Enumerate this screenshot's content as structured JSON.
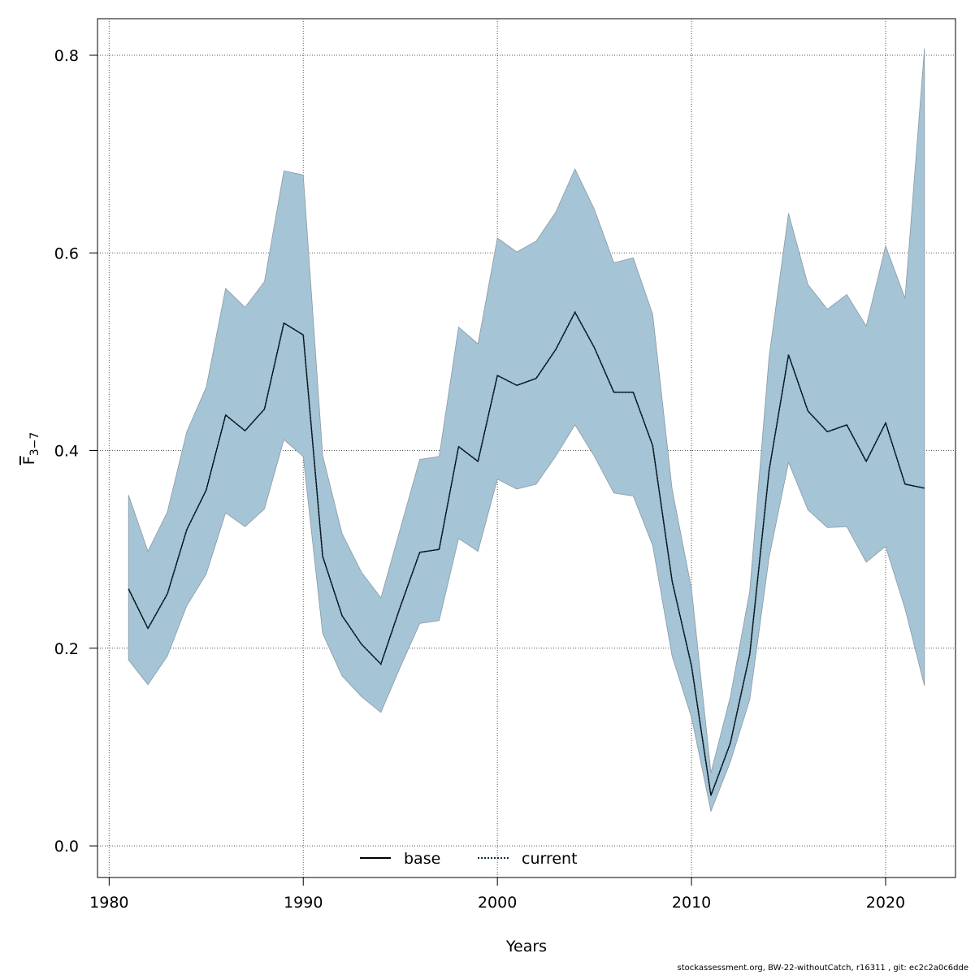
{
  "chart_data": {
    "type": "line",
    "xlabel": "Years",
    "ylabel_main": "F",
    "ylabel_sub": "3−7",
    "xlim": [
      1979.4,
      2023.6
    ],
    "ylim": [
      -0.032,
      0.837
    ],
    "x_ticks": [
      1980,
      1990,
      2000,
      2010,
      2020
    ],
    "y_ticks": [
      0.0,
      0.2,
      0.4,
      0.6,
      0.8
    ],
    "y_tick_labels": [
      "0.0",
      "0.2",
      "0.4",
      "0.6",
      "0.8"
    ],
    "grid": true,
    "legend_position": "bottom-center",
    "band_color": "#a5c4d5",
    "band_edge_color": "#8a9aa5",
    "line_color": "#0d2a3a",
    "years": [
      1981,
      1982,
      1983,
      1984,
      1985,
      1986,
      1987,
      1988,
      1989,
      1990,
      1991,
      1992,
      1993,
      1994,
      1995,
      1996,
      1997,
      1998,
      1999,
      2000,
      2001,
      2002,
      2003,
      2004,
      2005,
      2006,
      2007,
      2008,
      2009,
      2010,
      2011,
      2012,
      2013,
      2014,
      2015,
      2016,
      2017,
      2018,
      2019,
      2020,
      2021,
      2022
    ],
    "series": [
      {
        "name": "base",
        "style": "solid",
        "values": [
          0.26,
          0.22,
          0.255,
          0.32,
          0.36,
          0.436,
          0.42,
          0.442,
          0.529,
          0.517,
          0.293,
          0.233,
          0.204,
          0.184,
          0.242,
          0.297,
          0.3,
          0.404,
          0.389,
          0.476,
          0.466,
          0.473,
          0.502,
          0.54,
          0.504,
          0.459,
          0.459,
          0.405,
          0.268,
          0.182,
          0.051,
          0.104,
          0.194,
          0.38,
          0.497,
          0.44,
          0.419,
          0.426,
          0.389,
          0.428,
          0.366,
          0.362
        ]
      },
      {
        "name": "current",
        "style": "dotted",
        "values": [
          0.26,
          0.22,
          0.255,
          0.32,
          0.36,
          0.436,
          0.42,
          0.442,
          0.529,
          0.517,
          0.293,
          0.233,
          0.204,
          0.184,
          0.242,
          0.297,
          0.3,
          0.404,
          0.389,
          0.476,
          0.466,
          0.473,
          0.502,
          0.54,
          0.504,
          0.459,
          0.459,
          0.405,
          0.268,
          0.182,
          0.051,
          0.104,
          0.194,
          0.38,
          0.497,
          0.44,
          0.419,
          0.426,
          0.389,
          0.428,
          0.366,
          0.362
        ]
      }
    ],
    "band": {
      "lower": [
        0.188,
        0.163,
        0.192,
        0.243,
        0.275,
        0.337,
        0.323,
        0.341,
        0.411,
        0.394,
        0.215,
        0.172,
        0.151,
        0.135,
        0.181,
        0.225,
        0.228,
        0.311,
        0.298,
        0.371,
        0.361,
        0.366,
        0.394,
        0.426,
        0.394,
        0.357,
        0.354,
        0.304,
        0.192,
        0.13,
        0.035,
        0.085,
        0.148,
        0.292,
        0.388,
        0.34,
        0.322,
        0.323,
        0.287,
        0.303,
        0.24,
        0.162
      ],
      "upper": [
        0.355,
        0.298,
        0.338,
        0.419,
        0.464,
        0.564,
        0.545,
        0.571,
        0.683,
        0.679,
        0.395,
        0.316,
        0.277,
        0.251,
        0.321,
        0.391,
        0.394,
        0.525,
        0.508,
        0.615,
        0.601,
        0.612,
        0.641,
        0.685,
        0.644,
        0.59,
        0.595,
        0.538,
        0.361,
        0.26,
        0.074,
        0.151,
        0.258,
        0.495,
        0.64,
        0.568,
        0.543,
        0.558,
        0.526,
        0.607,
        0.554,
        0.807
      ]
    }
  },
  "footer": "stockassessment.org, BW-22-withoutCatch, r16311 , git: ec2c2a0c6dde"
}
